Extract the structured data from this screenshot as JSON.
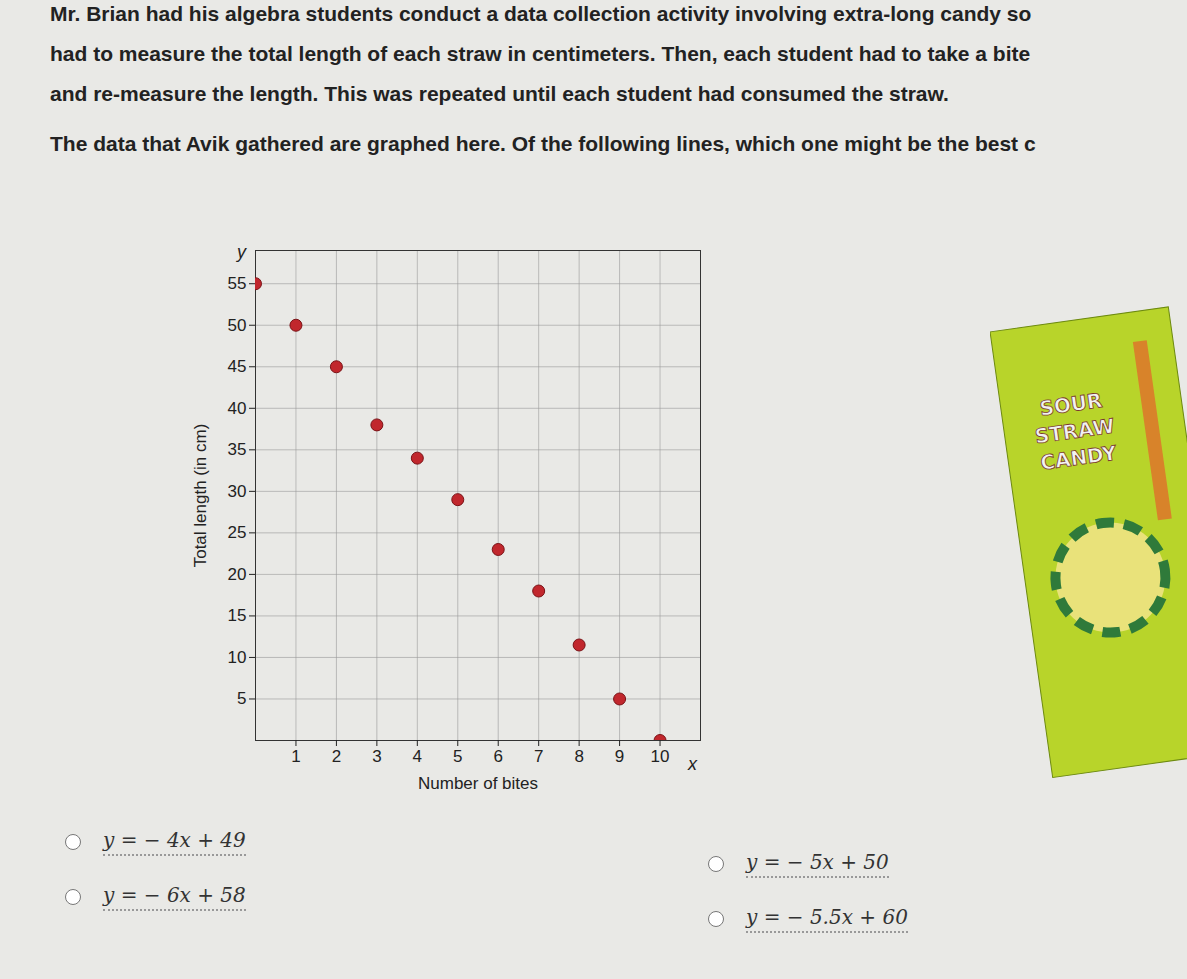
{
  "question": [
    "Mr. Brian had his algebra students conduct a data collection activity involving extra-long candy so",
    "had to measure the total length of each straw in centimeters. Then, each student had to take a bite",
    "and re-measure the length. This was repeated until each student had consumed the straw.",
    "The data that Avik gathered are graphed here. Of the following lines, which one might be the best c"
  ],
  "chart_data": {
    "type": "scatter",
    "x_label": "Number of bites",
    "y_label": "Total length (in cm)",
    "axis_names": [
      "y",
      "x"
    ],
    "x": [
      0,
      1,
      2,
      3,
      4,
      5,
      6,
      7,
      8,
      9,
      10
    ],
    "values": [
      55,
      50,
      45,
      38,
      34,
      29,
      23,
      18,
      11.5,
      5,
      0
    ],
    "color": "#c1272d",
    "xlim": [
      0,
      11
    ],
    "xticks": [
      1,
      2,
      3,
      4,
      5,
      6,
      7,
      8,
      9,
      10
    ],
    "ylim": [
      0,
      59
    ],
    "yticks": [
      5,
      10,
      15,
      20,
      25,
      30,
      35,
      40,
      45,
      50,
      55
    ],
    "grid": true
  },
  "image_text": [
    "SOUR",
    "STRAW",
    "CANDY"
  ],
  "choices": [
    "y = − 4x + 49",
    "y = − 6x + 58",
    "y = − 5x + 50",
    "y = − 5.5x + 60"
  ]
}
